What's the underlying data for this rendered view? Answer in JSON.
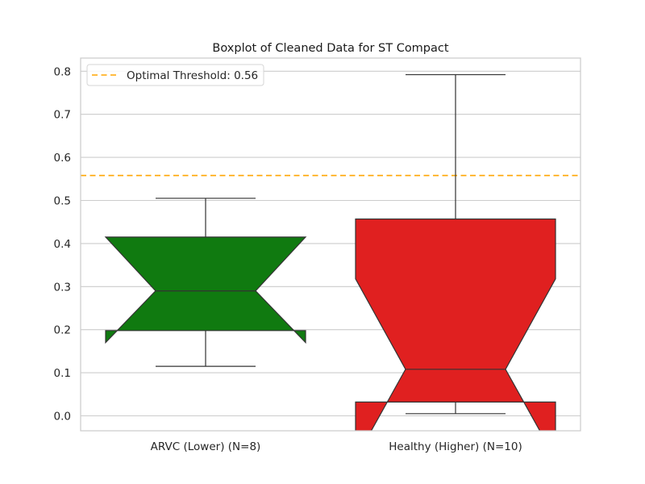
{
  "chart_data": {
    "type": "boxplot",
    "notched": true,
    "title": "Boxplot of Cleaned Data for ST Compact",
    "xlabel": "",
    "ylabel": "",
    "ylim": [
      -0.035,
      0.835
    ],
    "yticks": [
      0.0,
      0.1,
      0.2,
      0.3,
      0.4,
      0.5,
      0.6,
      0.7,
      0.8
    ],
    "ytick_labels": [
      "0.0",
      "0.1",
      "0.2",
      "0.3",
      "0.4",
      "0.5",
      "0.6",
      "0.7",
      "0.8"
    ],
    "grid": true,
    "legend_position": "top-left",
    "categories": [
      "ARVC (Lower) (N=8)",
      "Healthy (Higher) (N=10)"
    ],
    "boxes": [
      {
        "category": "ARVC (Lower) (N=8)",
        "color": "#107a10",
        "whisker_low": 0.115,
        "q1": 0.198,
        "median": 0.29,
        "q3": 0.415,
        "whisker_high": 0.505,
        "notch_low": 0.17,
        "notch_high": 0.415
      },
      {
        "category": "Healthy (Higher) (N=10)",
        "color": "#e02020",
        "whisker_low": 0.005,
        "q1": 0.032,
        "median": 0.108,
        "q3": 0.457,
        "whisker_high": 0.792,
        "notch_low": -0.1,
        "notch_high": 0.318
      }
    ],
    "reference_lines": [
      {
        "value": 0.558,
        "label": "Optimal Threshold: 0.56",
        "color": "#ffa500",
        "style": "dashed"
      }
    ]
  }
}
